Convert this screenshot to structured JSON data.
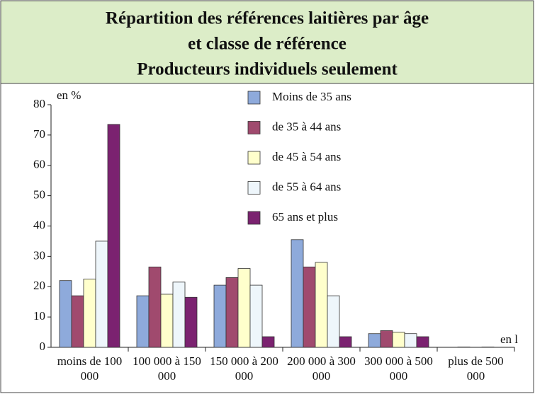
{
  "chart_data": {
    "type": "bar",
    "title": "Répartition des références laitières par âge",
    "subtitle": "et classe de référence",
    "subtitle2": "Producteurs individuels seulement",
    "y_label": "en %",
    "x_label": "en l",
    "categories": [
      "moins de 100 000",
      "100 000 à 150 000",
      "150 000 à 200 000",
      "200 000 à 300 000",
      "300 000 à 500 000",
      "plus de 500 000"
    ],
    "series": [
      {
        "name": "Moins de 35 ans",
        "color": "#8eaadb",
        "values": [
          22,
          17,
          20.5,
          35.5,
          4.5,
          0
        ]
      },
      {
        "name": "de 35 à 44 ans",
        "color": "#a04a6e",
        "values": [
          17,
          26.5,
          23,
          26.5,
          5.5,
          0.1
        ]
      },
      {
        "name": "de 45 à 54 ans",
        "color": "#ffffcc",
        "values": [
          22.5,
          17.5,
          26,
          28,
          5,
          0
        ]
      },
      {
        "name": "de 55 à 64 ans",
        "color": "#eef6fb",
        "values": [
          35,
          21.5,
          20.5,
          17,
          4.5,
          0.1
        ]
      },
      {
        "name": "65 ans et plus",
        "color": "#7b2270",
        "values": [
          73.5,
          16.5,
          3.5,
          3.5,
          3.5,
          0
        ]
      }
    ],
    "ylim": [
      0,
      80
    ],
    "yticks": [
      0,
      10,
      20,
      30,
      40,
      50,
      60,
      70,
      80
    ],
    "grid": false
  }
}
